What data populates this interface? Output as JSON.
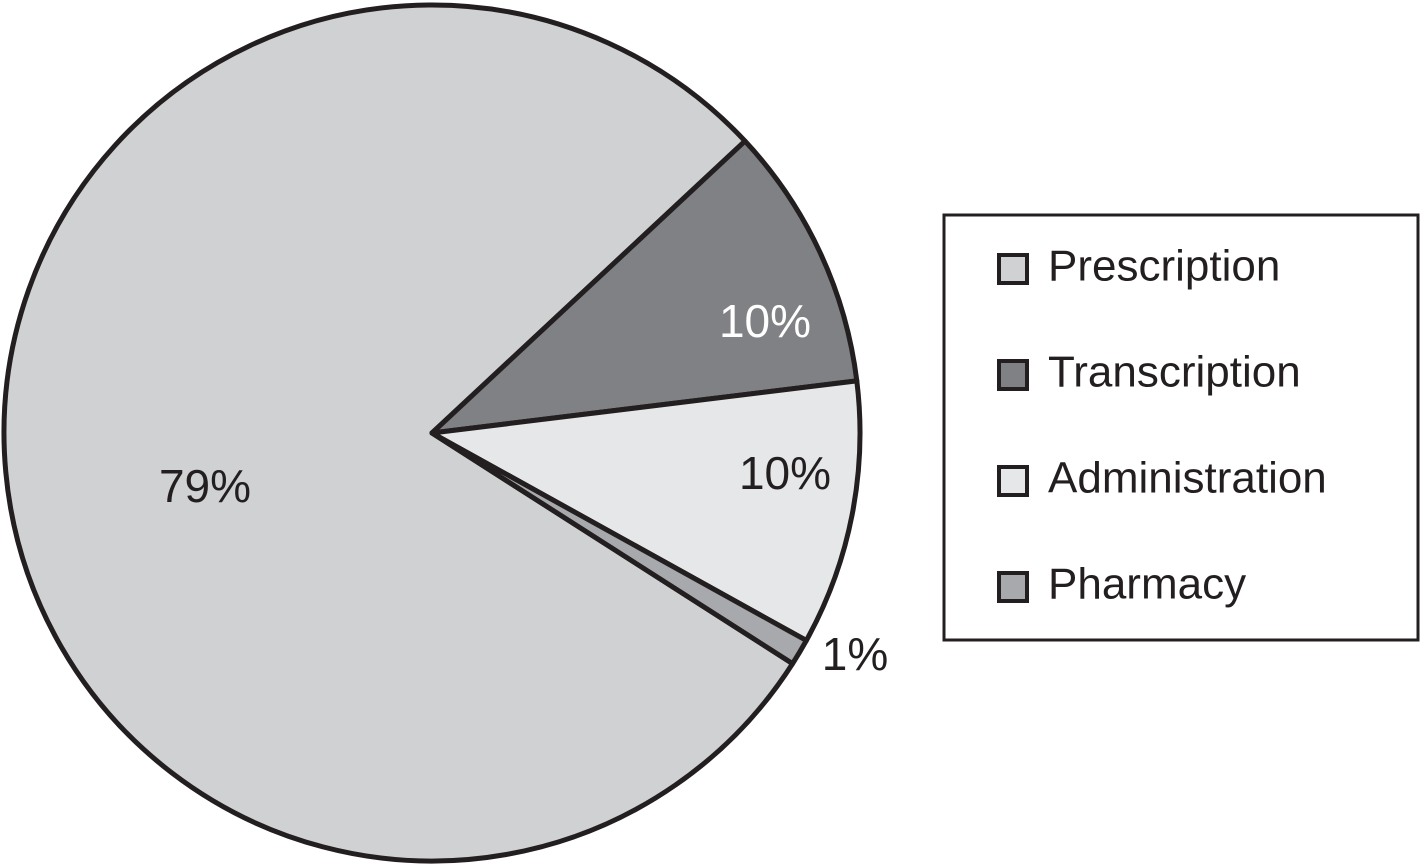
{
  "chart_data": {
    "type": "pie",
    "categories": [
      "Prescription",
      "Transcription",
      "Administration",
      "Pharmacy"
    ],
    "values": [
      79,
      10,
      10,
      1
    ],
    "value_labels": [
      "79%",
      "10%",
      "10%",
      "1%"
    ],
    "colors": [
      "#d0d1d3",
      "#808184",
      "#e6e7e8",
      "#a7a9ac"
    ],
    "legend": "right"
  }
}
